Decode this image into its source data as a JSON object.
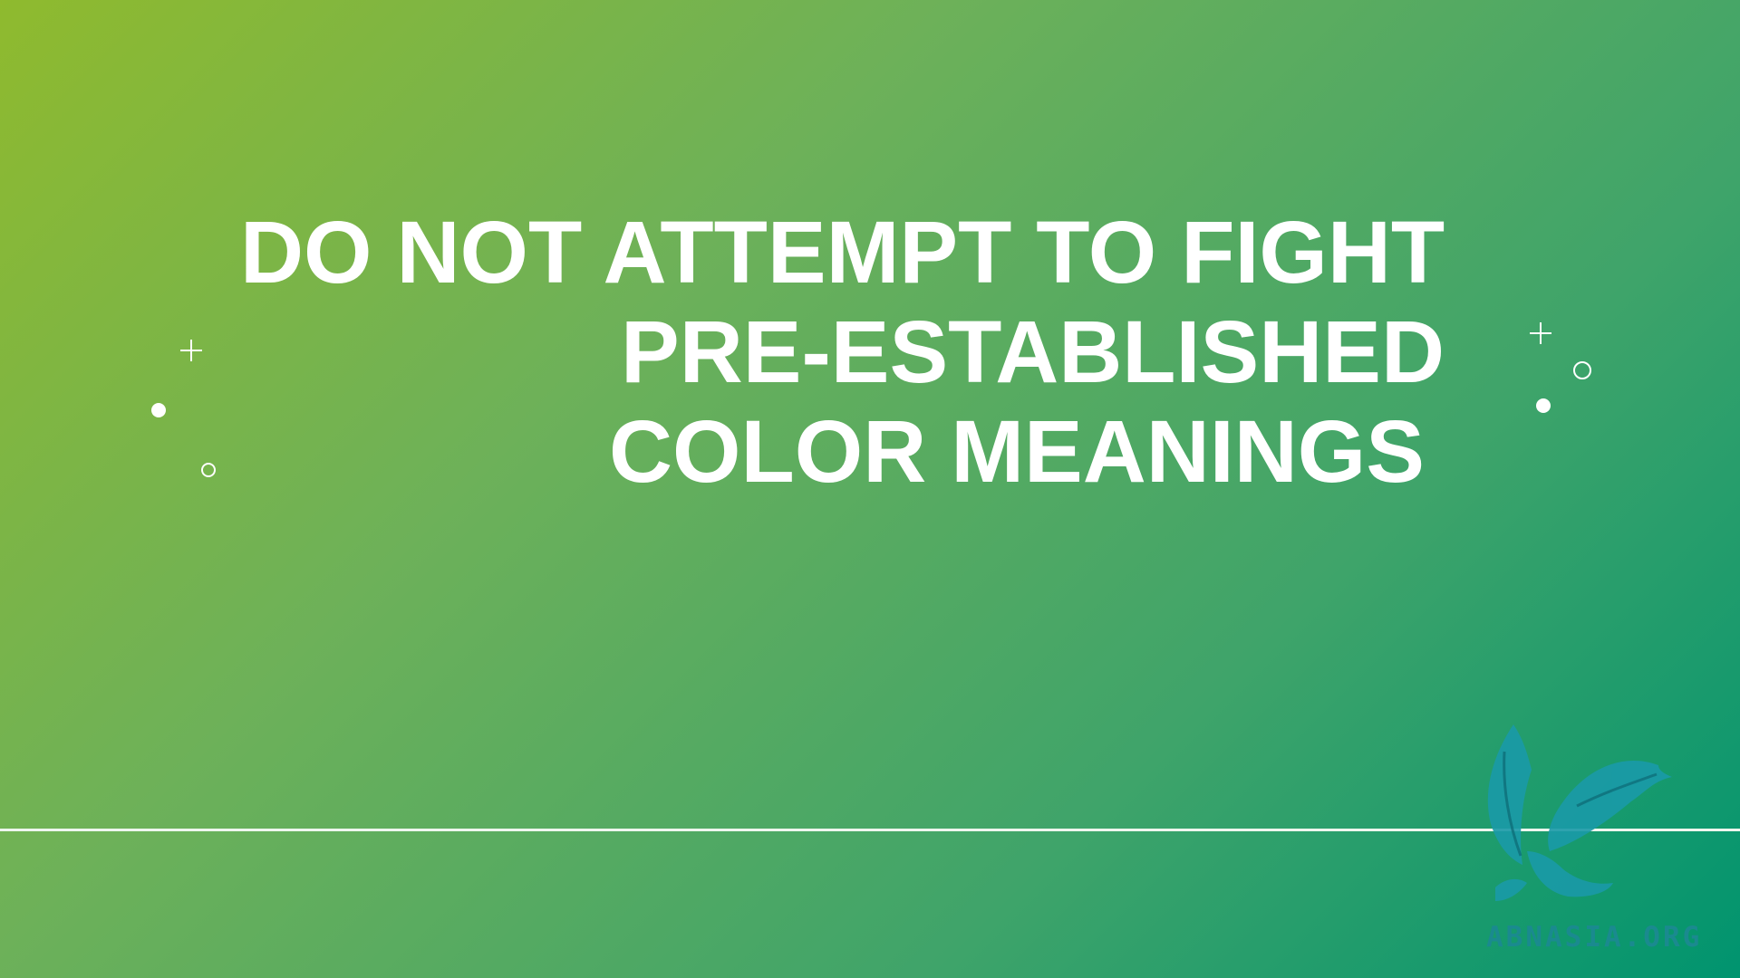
{
  "slide": {
    "headline_lines": [
      "DO NOT ATTEMPT TO FIGHT",
      "PRE-ESTABLISHED",
      "COLOR MEANINGS"
    ],
    "background_colors": [
      "#8fba2e",
      "#6db159",
      "#3fa46a",
      "#00946f"
    ],
    "text_color": "#ffffff",
    "decorations": {
      "left": [
        "plus-icon",
        "dot-icon",
        "ring-icon"
      ],
      "right": [
        "plus-icon",
        "ring-icon",
        "dot-icon"
      ]
    }
  },
  "watermark": {
    "logo_icon": "bird-logo-icon",
    "site": "ABNASIA.ORG",
    "color": "#1a8a8f"
  }
}
